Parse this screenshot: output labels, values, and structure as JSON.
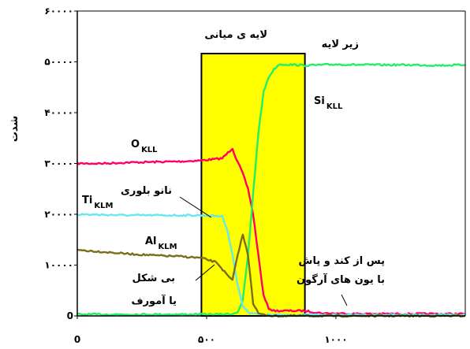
{
  "chart_data": {
    "type": "line",
    "xlabel": "",
    "ylabel": "شدت",
    "xlim": [
      0,
      1500
    ],
    "ylim": [
      0,
      60000
    ],
    "x_ticks": [
      {
        "value": 0,
        "label": "0"
      },
      {
        "value": 500,
        "label": "۵۰۰"
      },
      {
        "value": 1000,
        "label": "۱۰۰۰"
      }
    ],
    "y_ticks": [
      {
        "value": 0,
        "label": "0"
      },
      {
        "value": 10000,
        "label": "۱۰۰۰۰"
      },
      {
        "value": 20000,
        "label": "۲۰۰۰۰"
      },
      {
        "value": 30000,
        "label": "۳۰۰۰۰"
      },
      {
        "value": 40000,
        "label": "۴۰۰۰۰"
      },
      {
        "value": 50000,
        "label": "۵۰۰۰۰"
      },
      {
        "value": 60000,
        "label": "۶۰۰۰۰"
      }
    ],
    "interlayer_region": {
      "x_start": 480,
      "x_end": 880,
      "color": "#ffff00"
    },
    "series": [
      {
        "id": "O",
        "color": "#ff0066",
        "x": [
          0,
          100,
          200,
          300,
          400,
          480,
          560,
          600,
          610,
          640,
          660,
          680,
          700,
          720,
          740,
          760,
          780,
          800,
          880,
          950,
          1000,
          1100,
          1200,
          1300,
          1400,
          1500
        ],
        "y": [
          30000,
          30000,
          30200,
          30300,
          30400,
          30600,
          31000,
          33000,
          31500,
          28000,
          25000,
          20000,
          12000,
          4000,
          1500,
          1000,
          1000,
          1000,
          1000,
          500,
          500,
          400,
          400,
          400,
          400,
          400
        ]
      },
      {
        "id": "Si",
        "color": "#22ee66",
        "x": [
          0,
          100,
          200,
          300,
          400,
          480,
          560,
          600,
          620,
          640,
          660,
          680,
          700,
          720,
          740,
          760,
          780,
          800,
          880,
          950,
          1000,
          1100,
          1200,
          1300,
          1400,
          1500
        ],
        "y": [
          300,
          300,
          300,
          300,
          300,
          300,
          300,
          400,
          800,
          3000,
          12000,
          24000,
          36000,
          44000,
          47000,
          48500,
          49500,
          49500,
          49300,
          49400,
          49500,
          49400,
          49400,
          49400,
          49300,
          49400
        ]
      },
      {
        "id": "Ti",
        "color": "#66e8ee",
        "x": [
          0,
          100,
          200,
          300,
          400,
          480,
          560,
          580,
          600,
          620,
          640,
          660,
          680,
          700,
          720,
          800,
          880,
          1000,
          1100,
          1200,
          1300,
          1400,
          1500
        ],
        "y": [
          20000,
          19900,
          19800,
          19800,
          19800,
          19800,
          19600,
          17000,
          12000,
          6000,
          2000,
          800,
          500,
          300,
          200,
          200,
          200,
          200,
          200,
          200,
          200,
          200,
          200
        ]
      },
      {
        "id": "Al",
        "color": "#7a6e1c",
        "x": [
          0,
          100,
          200,
          300,
          400,
          480,
          540,
          580,
          600,
          620,
          640,
          660,
          680,
          700,
          720,
          760,
          880,
          1000,
          1200,
          1500
        ],
        "y": [
          13000,
          12600,
          12200,
          11900,
          11700,
          11400,
          10500,
          8000,
          7000,
          12000,
          16000,
          12000,
          2500,
          500,
          200,
          0,
          0,
          0,
          0,
          0
        ]
      }
    ],
    "annotations": [
      {
        "id": "O_label",
        "main": "O",
        "sub": "KLL"
      },
      {
        "id": "Si_label",
        "main": "Si",
        "sub": "KLL"
      },
      {
        "id": "Ti_label",
        "main": "Ti",
        "sub": "KLM"
      },
      {
        "id": "Al_label",
        "main": "Al",
        "sub": "KLM"
      },
      {
        "id": "nano_crystalline",
        "text": "نانو بلوری"
      },
      {
        "id": "amorphous_line1",
        "text": "بی شکل"
      },
      {
        "id": "amorphous_line2",
        "text": "یا آمورف"
      },
      {
        "id": "interlayer",
        "text": "لایه ی میانی"
      },
      {
        "id": "substrate",
        "text": "زیر لایه"
      },
      {
        "id": "argon_line1",
        "text": "پس از کند و پاش"
      },
      {
        "id": "argon_line2",
        "text": "با یون های آرگون"
      }
    ]
  }
}
